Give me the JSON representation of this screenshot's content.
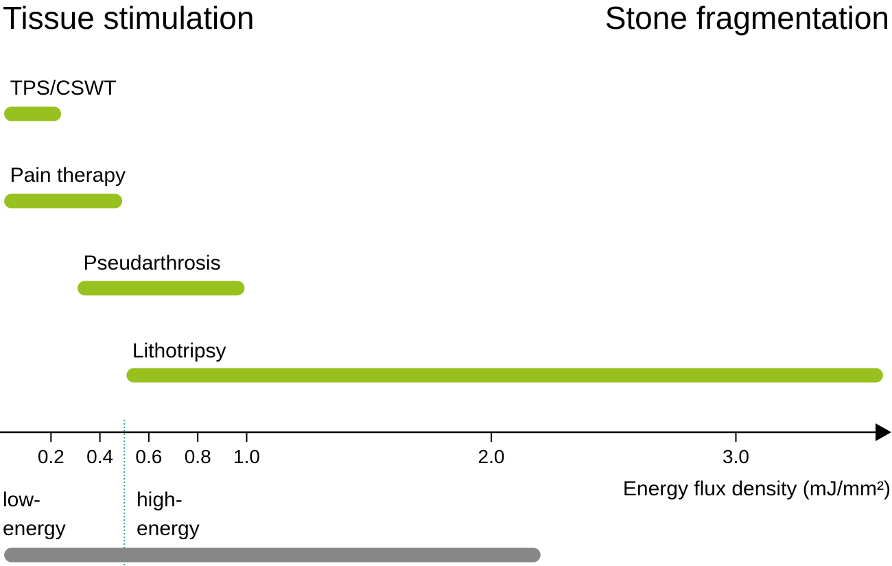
{
  "chart_data": {
    "type": "range-bar",
    "title_left": "Tissue stimulation",
    "title_right": "Stone fragmentation",
    "xlabel": "Energy flux density (mJ/mm²)",
    "xlim": [
      0,
      3.6
    ],
    "ticks": [
      {
        "value": 0.2,
        "label": "0.2"
      },
      {
        "value": 0.4,
        "label": "0.4"
      },
      {
        "value": 0.6,
        "label": "0.6"
      },
      {
        "value": 0.8,
        "label": "0.8"
      },
      {
        "value": 1.0,
        "label": "1.0"
      },
      {
        "value": 2.0,
        "label": "2.0"
      },
      {
        "value": 3.0,
        "label": "3.0"
      }
    ],
    "ranges": [
      {
        "label": "TPS/CSWT",
        "start": 0.01,
        "end": 0.24
      },
      {
        "label": "Pain therapy",
        "start": 0.01,
        "end": 0.49
      },
      {
        "label": "Pseudarthrosis",
        "start": 0.31,
        "end": 0.99
      },
      {
        "label": "Lithotripsy",
        "start": 0.51,
        "end": 3.6
      }
    ],
    "threshold": 0.5,
    "energy_labels": {
      "low": [
        "low-",
        "energy"
      ],
      "high": [
        "high-",
        "energy"
      ]
    },
    "bottom_bar": {
      "start": 0.01,
      "end": 2.2
    },
    "colors": {
      "range": "#97c11f",
      "bottom_bar": "#878787",
      "threshold": "#2aa198",
      "axis": "#000000"
    }
  }
}
